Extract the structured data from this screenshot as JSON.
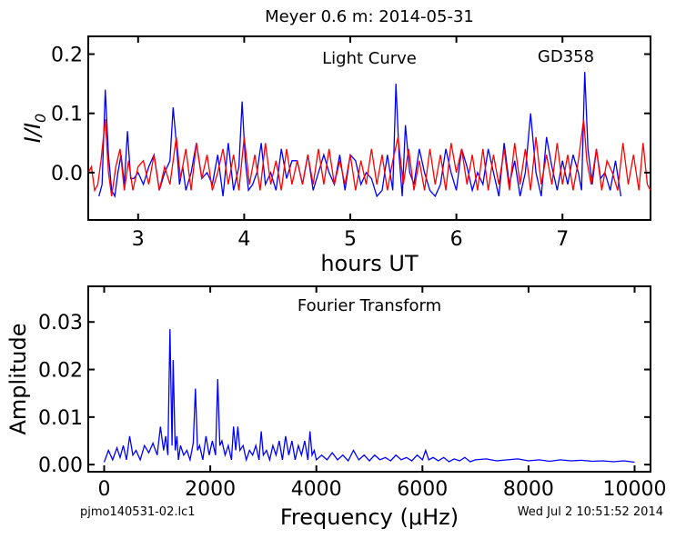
{
  "figure": {
    "title": "Meyer 0.6 m:  2014-05-31",
    "footer_left": "pjmo140531-02.lc1",
    "footer_right": "Wed Jul  2 10:51:52 2014"
  },
  "chart_data": [
    {
      "type": "line",
      "title": "Light Curve",
      "annotation": "GD358",
      "xlabel": "hours UT",
      "ylabel": "I/I0",
      "xlim": [
        2.53,
        7.83
      ],
      "ylim": [
        -0.08,
        0.23
      ],
      "xticks": [
        3,
        4,
        5,
        6,
        7
      ],
      "yticks": [
        0.0,
        0.1,
        0.2
      ],
      "ytick_labels": [
        "0.0",
        "0.1",
        "0.2"
      ],
      "grid": false,
      "series": [
        {
          "color": "#0000ff",
          "x": [
            2.63,
            2.66,
            2.69,
            2.72,
            2.75,
            2.78,
            2.81,
            2.84,
            2.87,
            2.9,
            2.93,
            2.96,
            3.0,
            3.05,
            3.1,
            3.15,
            3.2,
            3.25,
            3.3,
            3.33,
            3.36,
            3.39,
            3.42,
            3.45,
            3.5,
            3.55,
            3.6,
            3.65,
            3.7,
            3.75,
            3.8,
            3.85,
            3.9,
            3.95,
            3.98,
            4.01,
            4.04,
            4.08,
            4.12,
            4.16,
            4.2,
            4.25,
            4.3,
            4.35,
            4.4,
            4.45,
            4.5,
            4.55,
            4.6,
            4.65,
            4.7,
            4.75,
            4.8,
            4.85,
            4.9,
            4.95,
            5.0,
            5.05,
            5.1,
            5.15,
            5.2,
            5.25,
            5.3,
            5.35,
            5.4,
            5.43,
            5.46,
            5.49,
            5.52,
            5.56,
            5.6,
            5.65,
            5.7,
            5.75,
            5.8,
            5.85,
            5.9,
            5.95,
            6.0,
            6.05,
            6.1,
            6.15,
            6.2,
            6.25,
            6.3,
            6.35,
            6.4,
            6.45,
            6.5,
            6.55,
            6.6,
            6.65,
            6.7,
            6.75,
            6.8,
            6.85,
            6.9,
            6.95,
            7.0,
            7.05,
            7.1,
            7.15,
            7.18,
            7.21,
            7.24,
            7.28,
            7.32,
            7.36,
            7.4,
            7.45,
            7.5,
            7.55
          ],
          "y": [
            -0.04,
            -0.02,
            0.14,
            0.03,
            -0.03,
            -0.04,
            0.0,
            0.03,
            -0.02,
            0.07,
            -0.01,
            -0.01,
            0.0,
            -0.02,
            0.01,
            0.03,
            -0.03,
            0.0,
            0.02,
            0.11,
            0.05,
            -0.02,
            0.01,
            -0.03,
            0.0,
            0.05,
            -0.01,
            0.0,
            -0.02,
            0.03,
            -0.04,
            0.05,
            -0.03,
            0.01,
            0.12,
            0.02,
            -0.03,
            -0.02,
            0.0,
            0.05,
            -0.02,
            0.0,
            -0.03,
            0.04,
            -0.01,
            0.02,
            0.02,
            -0.02,
            0.03,
            -0.03,
            0.0,
            0.03,
            0.0,
            -0.02,
            0.03,
            -0.03,
            0.03,
            0.02,
            -0.02,
            0.0,
            -0.01,
            -0.04,
            -0.03,
            0.03,
            -0.03,
            0.15,
            0.03,
            -0.04,
            0.08,
            0.0,
            -0.02,
            0.04,
            0.0,
            -0.03,
            -0.04,
            -0.02,
            0.04,
            0.0,
            -0.03,
            0.04,
            0.01,
            -0.03,
            0.0,
            -0.02,
            0.04,
            0.0,
            -0.04,
            0.05,
            -0.02,
            0.02,
            -0.04,
            0.0,
            0.1,
            0.0,
            -0.04,
            0.06,
            0.01,
            -0.03,
            0.02,
            -0.02,
            0.03,
            0.0,
            -0.03,
            0.17,
            0.04,
            -0.02,
            0.04,
            -0.01,
            0.0,
            -0.03,
            0.02,
            -0.04
          ]
        },
        {
          "color": "#ff0000",
          "x": [
            2.53,
            2.56,
            2.59,
            2.62,
            2.65,
            2.69,
            2.72,
            2.75,
            2.79,
            2.83,
            2.87,
            2.91,
            2.95,
            3.0,
            3.05,
            3.1,
            3.15,
            3.2,
            3.25,
            3.3,
            3.36,
            3.4,
            3.45,
            3.5,
            3.55,
            3.6,
            3.65,
            3.7,
            3.75,
            3.8,
            3.85,
            3.9,
            3.95,
            4.0,
            4.05,
            4.1,
            4.15,
            4.2,
            4.25,
            4.3,
            4.35,
            4.4,
            4.45,
            4.5,
            4.55,
            4.6,
            4.65,
            4.7,
            4.75,
            4.8,
            4.85,
            4.9,
            4.95,
            5.0,
            5.05,
            5.1,
            5.15,
            5.2,
            5.25,
            5.3,
            5.35,
            5.4,
            5.45,
            5.5,
            5.55,
            5.6,
            5.65,
            5.7,
            5.75,
            5.8,
            5.85,
            5.9,
            5.95,
            6.0,
            6.05,
            6.1,
            6.15,
            6.2,
            6.25,
            6.3,
            6.35,
            6.4,
            6.45,
            6.5,
            6.55,
            6.6,
            6.65,
            6.7,
            6.75,
            6.8,
            6.85,
            6.9,
            6.95,
            7.0,
            7.05,
            7.1,
            7.15,
            7.2,
            7.23,
            7.27,
            7.32,
            7.37,
            7.42,
            7.47,
            7.52,
            7.57,
            7.62,
            7.67,
            7.72,
            7.76,
            7.8,
            7.83
          ],
          "y": [
            0.0,
            0.01,
            -0.03,
            -0.02,
            0.02,
            0.09,
            0.0,
            -0.04,
            0.01,
            0.04,
            -0.03,
            0.02,
            -0.03,
            0.01,
            0.02,
            -0.02,
            0.03,
            -0.03,
            0.01,
            -0.02,
            0.06,
            -0.01,
            0.04,
            -0.03,
            0.05,
            -0.01,
            0.03,
            -0.03,
            0.0,
            0.04,
            -0.02,
            0.03,
            -0.03,
            0.06,
            -0.02,
            0.03,
            -0.03,
            0.05,
            -0.02,
            0.02,
            -0.03,
            0.04,
            -0.02,
            0.02,
            -0.02,
            0.03,
            -0.02,
            0.04,
            -0.02,
            0.04,
            -0.02,
            0.02,
            -0.02,
            0.03,
            -0.03,
            0.02,
            -0.02,
            0.04,
            -0.02,
            0.03,
            -0.03,
            0.02,
            0.06,
            -0.02,
            0.04,
            -0.03,
            0.02,
            -0.03,
            0.04,
            -0.02,
            0.03,
            -0.03,
            0.05,
            0.0,
            0.04,
            -0.02,
            0.03,
            -0.03,
            0.04,
            -0.03,
            0.03,
            -0.02,
            0.04,
            -0.03,
            0.05,
            -0.02,
            0.04,
            -0.03,
            0.06,
            -0.02,
            0.03,
            -0.02,
            0.05,
            -0.02,
            0.03,
            -0.03,
            0.02,
            0.09,
            0.02,
            -0.02,
            0.04,
            -0.03,
            0.02,
            0.0,
            -0.03,
            0.05,
            -0.02,
            0.03,
            -0.03,
            0.05,
            -0.02,
            -0.03
          ]
        }
      ]
    },
    {
      "type": "line",
      "title": "Fourier Transform",
      "xlabel": "Frequency (μHz)",
      "ylabel": "Amplitude",
      "xlim": [
        -300,
        10300
      ],
      "ylim": [
        -0.0015,
        0.0375
      ],
      "xticks": [
        0,
        2000,
        4000,
        6000,
        8000,
        10000
      ],
      "yticks": [
        0.0,
        0.01,
        0.02,
        0.03
      ],
      "ytick_labels": [
        "0.00",
        "0.01",
        "0.02",
        "0.03"
      ],
      "grid": false,
      "series": [
        {
          "color": "#0000ff",
          "x": [
            0,
            80,
            160,
            240,
            300,
            360,
            420,
            480,
            540,
            600,
            680,
            760,
            840,
            920,
            1000,
            1060,
            1120,
            1160,
            1200,
            1240,
            1280,
            1300,
            1340,
            1370,
            1400,
            1440,
            1500,
            1560,
            1620,
            1680,
            1720,
            1760,
            1800,
            1860,
            1920,
            1980,
            2040,
            2100,
            2140,
            2180,
            2220,
            2280,
            2340,
            2400,
            2440,
            2480,
            2520,
            2560,
            2620,
            2680,
            2740,
            2800,
            2860,
            2920,
            2960,
            3000,
            3060,
            3120,
            3180,
            3240,
            3300,
            3360,
            3420,
            3480,
            3540,
            3600,
            3660,
            3720,
            3780,
            3840,
            3880,
            3920,
            3960,
            4000,
            4100,
            4200,
            4300,
            4400,
            4500,
            4600,
            4700,
            4800,
            4900,
            5000,
            5100,
            5200,
            5300,
            5400,
            5500,
            5600,
            5700,
            5800,
            5900,
            6000,
            6060,
            6120,
            6200,
            6300,
            6400,
            6500,
            6600,
            6700,
            6800,
            6900,
            7000,
            7200,
            7400,
            7600,
            7800,
            8000,
            8200,
            8400,
            8600,
            8800,
            9000,
            9200,
            9400,
            9600,
            9800,
            10000
          ],
          "y": [
            0.0005,
            0.003,
            0.001,
            0.0035,
            0.0015,
            0.004,
            0.001,
            0.006,
            0.002,
            0.003,
            0.001,
            0.004,
            0.0025,
            0.0045,
            0.002,
            0.008,
            0.003,
            0.006,
            0.002,
            0.0285,
            0.004,
            0.022,
            0.003,
            0.006,
            0.001,
            0.004,
            0.002,
            0.003,
            0.001,
            0.0045,
            0.016,
            0.003,
            0.004,
            0.001,
            0.006,
            0.002,
            0.005,
            0.002,
            0.018,
            0.004,
            0.005,
            0.002,
            0.004,
            0.001,
            0.008,
            0.003,
            0.008,
            0.003,
            0.004,
            0.001,
            0.003,
            0.002,
            0.004,
            0.001,
            0.007,
            0.002,
            0.003,
            0.001,
            0.004,
            0.002,
            0.005,
            0.001,
            0.006,
            0.002,
            0.005,
            0.001,
            0.004,
            0.002,
            0.005,
            0.001,
            0.007,
            0.002,
            0.003,
            0.001,
            0.002,
            0.001,
            0.0025,
            0.001,
            0.002,
            0.0008,
            0.003,
            0.001,
            0.002,
            0.0008,
            0.002,
            0.001,
            0.0015,
            0.0008,
            0.002,
            0.001,
            0.0015,
            0.0008,
            0.002,
            0.001,
            0.003,
            0.001,
            0.0015,
            0.0008,
            0.0015,
            0.0006,
            0.0012,
            0.0008,
            0.0015,
            0.0006,
            0.001,
            0.0012,
            0.0008,
            0.001,
            0.0012,
            0.0008,
            0.001,
            0.0007,
            0.001,
            0.0008,
            0.0009,
            0.0007,
            0.0008,
            0.0006,
            0.0008,
            0.0005
          ]
        }
      ]
    }
  ]
}
